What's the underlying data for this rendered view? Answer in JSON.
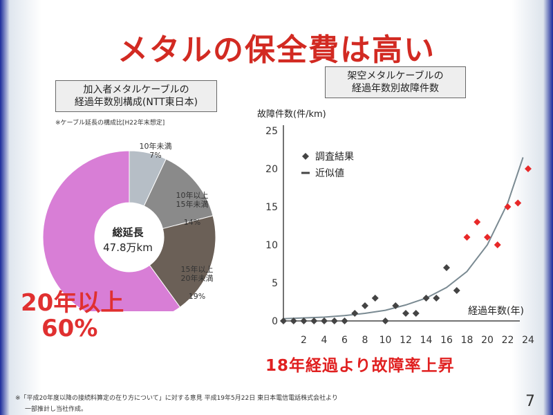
{
  "slide": {
    "title": "メタルの保全費は高い",
    "page_number": "7",
    "footnote": "※「平成20年度以降の接続料算定の在り方について」に対する意見 平成19年5月22日 東日本電信電話株式会社より",
    "footnote2": "一部推計し当社作成。"
  },
  "pie": {
    "box_title_1": "加入者メタルケーブルの",
    "box_title_2": "経過年数別構成(NTT東日本)",
    "note": "※ケーブル延長の構成比[H22年末想定]",
    "center_label": "総延長",
    "center_value": "47.8万km",
    "segments": [
      {
        "label": "10年未満",
        "pct_text": "7%",
        "value": 7,
        "color": "#b6bec6"
      },
      {
        "label": "10年以上\n15年未満",
        "pct_text": "14%",
        "value": 14,
        "color": "#8a8a8a"
      },
      {
        "label": "15年以上\n20年未満",
        "pct_text": "19%",
        "value": 19,
        "color": "#6b6057"
      },
      {
        "label": "20年以上",
        "pct_text": "60%",
        "value": 60,
        "color": "#d87ed6"
      }
    ],
    "big_label": "20年以上",
    "big_pct": "60%"
  },
  "chart_data": {
    "type": "scatter",
    "box_title_1": "架空メタルケーブルの",
    "box_title_2": "経過年数別故障件数",
    "ylabel": "故障件数(件/km)",
    "xlabel": "経過年数(年)",
    "xlim": [
      0,
      24
    ],
    "ylim": [
      0,
      25
    ],
    "xticks": [
      2,
      4,
      6,
      8,
      10,
      12,
      14,
      16,
      18,
      20,
      22,
      24
    ],
    "yticks": [
      0,
      5,
      10,
      15,
      20,
      25
    ],
    "legend": {
      "points": "調査結果",
      "line": "近似値"
    },
    "points_black": [
      [
        0,
        0
      ],
      [
        1,
        0
      ],
      [
        2,
        0
      ],
      [
        3,
        0
      ],
      [
        4,
        0
      ],
      [
        5,
        0
      ],
      [
        6,
        0
      ],
      [
        7,
        1
      ],
      [
        8,
        2
      ],
      [
        9,
        3
      ],
      [
        10,
        0
      ],
      [
        11,
        2
      ],
      [
        12,
        1
      ],
      [
        13,
        1
      ],
      [
        14,
        3
      ],
      [
        15,
        3
      ],
      [
        16,
        7
      ],
      [
        17,
        4
      ]
    ],
    "points_red": [
      [
        18,
        11
      ],
      [
        19,
        13
      ],
      [
        20,
        11
      ],
      [
        21,
        10
      ],
      [
        22,
        15
      ],
      [
        23,
        15.5
      ],
      [
        24,
        20
      ]
    ],
    "curve": [
      [
        0,
        0.3
      ],
      [
        2,
        0.4
      ],
      [
        4,
        0.5
      ],
      [
        6,
        0.7
      ],
      [
        8,
        1.0
      ],
      [
        10,
        1.4
      ],
      [
        12,
        2.1
      ],
      [
        14,
        3.0
      ],
      [
        16,
        4.4
      ],
      [
        18,
        6.5
      ],
      [
        20,
        10
      ],
      [
        22,
        15.5
      ],
      [
        23.5,
        21.5
      ]
    ],
    "red_color": "#e82828",
    "black_color": "#444444",
    "curve_color": "#7a8a92",
    "caption": "18年経過より故障率上昇"
  }
}
